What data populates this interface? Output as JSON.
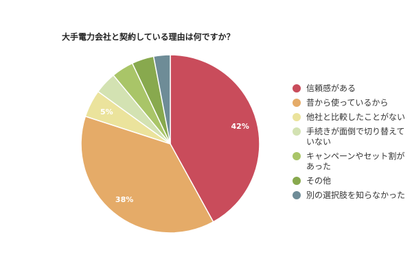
{
  "chart_data": {
    "type": "pie",
    "title": "大手電力会社と契約している理由は何ですか？",
    "start_angle_deg": 0,
    "direction": "clockwise",
    "legend_position": "right",
    "slices": [
      {
        "label": [
          "信頼感がある"
        ],
        "value": 42,
        "data_label": "42%",
        "color": "#c94c5b"
      },
      {
        "label": [
          "昔から使っているから"
        ],
        "value": 38,
        "data_label": "38%",
        "color": "#e5ab68"
      },
      {
        "label": [
          "他社と比較したことがない"
        ],
        "value": 5,
        "data_label": "5%",
        "color": "#ebe39c"
      },
      {
        "label": [
          "手続きが面倒で切り替えて",
          "いない"
        ],
        "value": 4,
        "data_label": "",
        "color": "#d3e2b2"
      },
      {
        "label": [
          "キャンペーンやセット割が",
          "あった"
        ],
        "value": 4,
        "data_label": "",
        "color": "#a9c568"
      },
      {
        "label": [
          "その他"
        ],
        "value": 4,
        "data_label": "",
        "color": "#88a94e"
      },
      {
        "label": [
          "別の選択肢を知らなかった"
        ],
        "value": 3,
        "data_label": "",
        "color": "#6e8c97"
      }
    ]
  }
}
